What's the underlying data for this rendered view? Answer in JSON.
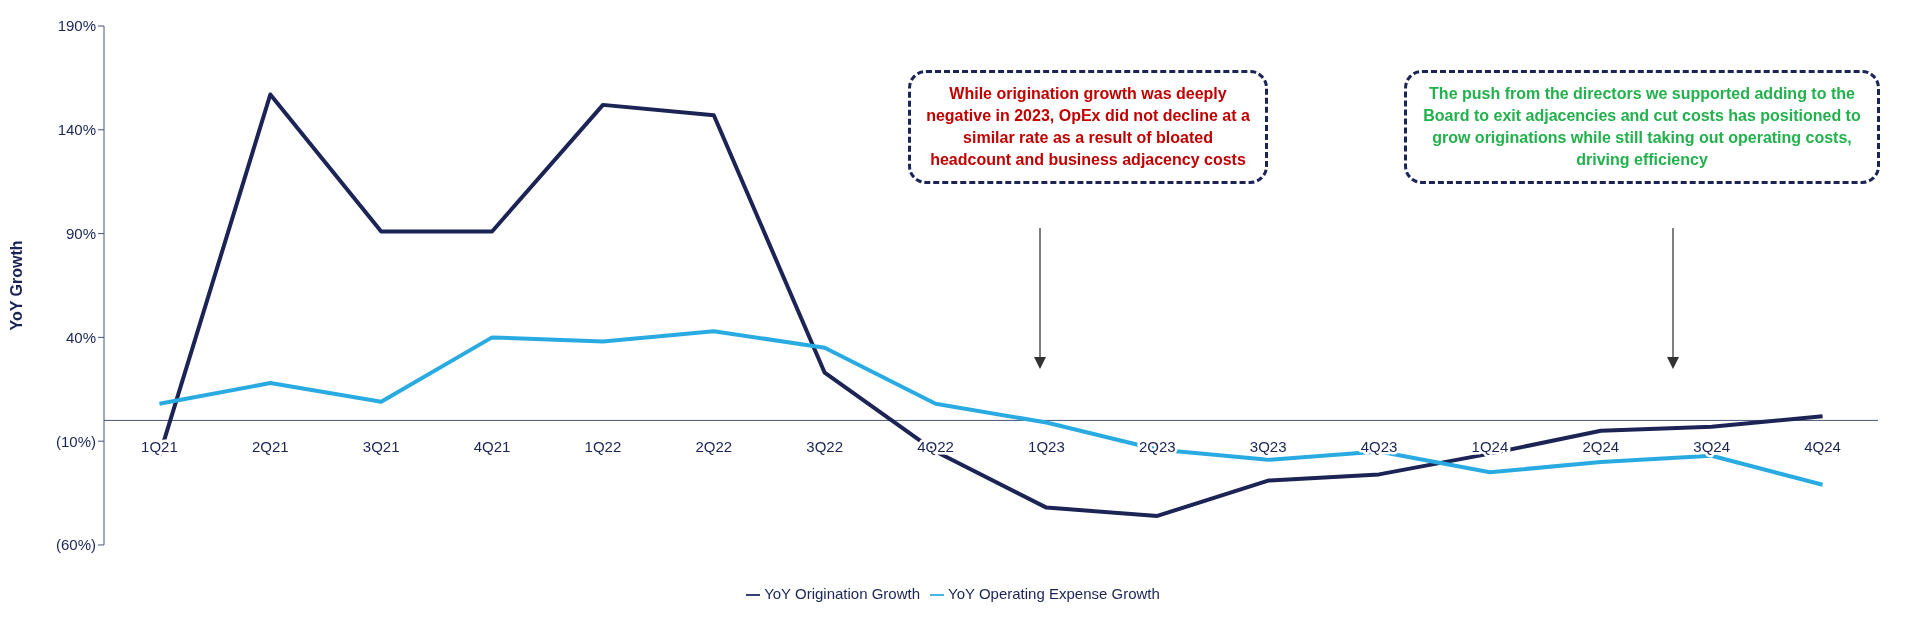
{
  "chart_data": {
    "type": "line",
    "ylabel": "YoY Growth",
    "categories": [
      "1Q21",
      "2Q21",
      "3Q21",
      "4Q21",
      "1Q22",
      "2Q22",
      "3Q22",
      "4Q22",
      "1Q23",
      "2Q23",
      "3Q23",
      "4Q23",
      "1Q24",
      "2Q24",
      "3Q24",
      "4Q24"
    ],
    "series": [
      {
        "name": "YoY Origination Growth",
        "color": "#1b2455",
        "values": [
          -17,
          157,
          91,
          91,
          152,
          147,
          23,
          -15,
          -42,
          -46,
          -29,
          -26,
          -16,
          -5,
          -3,
          2
        ]
      },
      {
        "name": "YoY Operating Expense Growth",
        "color": "#29abe2",
        "values": [
          8,
          18,
          9,
          40,
          38,
          43,
          35,
          8,
          -1,
          -14,
          -19,
          -15,
          -25,
          -20,
          -17,
          -31
        ]
      }
    ],
    "ylim": [
      -60,
      190
    ],
    "yticks": [
      {
        "value": -60,
        "label": "(60%)"
      },
      {
        "value": -10,
        "label": "(10%)"
      },
      {
        "value": 40,
        "label": "40%"
      },
      {
        "value": 90,
        "label": "90%"
      },
      {
        "value": 140,
        "label": "140%"
      },
      {
        "value": 190,
        "label": "190%"
      }
    ],
    "annotations": [
      "While origination growth was deeply negative in 2023, OpEx did not decline at a similar rate as a result of bloated headcount and business adjacency costs",
      "The push from the directors we supported adding to the Board to exit adjacencies and cut costs has positioned to grow originations while still taking out operating costs, driving efficiency"
    ],
    "legend": "bottom",
    "marker": "none",
    "line_style": "solid"
  }
}
